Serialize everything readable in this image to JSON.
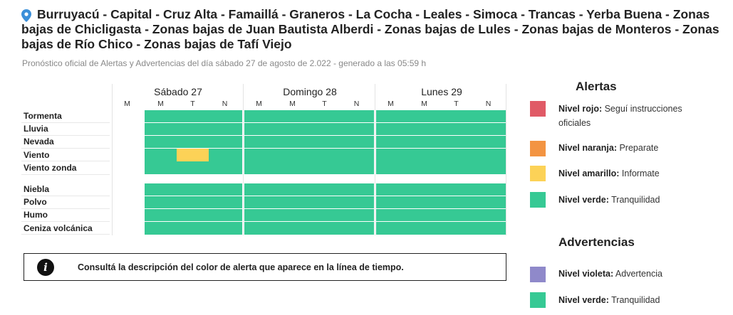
{
  "header": {
    "title": "Burruyacú - Capital - Cruz Alta - Famaillá - Graneros - La Cocha - Leales - Simoca - Trancas - Yerba Buena - Zonas bajas de Chicligasta - Zonas bajas de Juan Bautista Alberdi - Zonas bajas de Lules - Zonas bajas de Monteros - Zonas bajas de Río Chico - Zonas bajas de Tafí Viejo",
    "subtitle": "Pronóstico oficial de Alertas y Advertencias del día sábado 27 de agosto de 2.022 - generado a las 05:59 h",
    "pin_icon": "location-pin-icon"
  },
  "timeline": {
    "days": [
      {
        "label": "Sábado 27",
        "periods": [
          "M",
          "M",
          "T",
          "N"
        ]
      },
      {
        "label": "Domingo 28",
        "periods": [
          "M",
          "M",
          "T",
          "N"
        ]
      },
      {
        "label": "Lunes 29",
        "periods": [
          "M",
          "M",
          "T",
          "N"
        ]
      }
    ],
    "groups": [
      {
        "rows": [
          {
            "label": "Tormenta",
            "levels": [
              "",
              "green",
              "green",
              "green",
              "green",
              "green",
              "green",
              "green",
              "green",
              "green",
              "green",
              "green"
            ]
          },
          {
            "label": "Lluvia",
            "levels": [
              "",
              "green",
              "green",
              "green",
              "green",
              "green",
              "green",
              "green",
              "green",
              "green",
              "green",
              "green"
            ]
          },
          {
            "label": "Nevada",
            "levels": [
              "",
              "green",
              "green",
              "green",
              "green",
              "green",
              "green",
              "green",
              "green",
              "green",
              "green",
              "green"
            ]
          },
          {
            "label": "Viento",
            "levels": [
              "",
              "green",
              "yellow",
              "green",
              "green",
              "green",
              "green",
              "green",
              "green",
              "green",
              "green",
              "green"
            ]
          },
          {
            "label": "Viento zonda",
            "levels": [
              "",
              "green",
              "green",
              "green",
              "green",
              "green",
              "green",
              "green",
              "green",
              "green",
              "green",
              "green"
            ]
          }
        ]
      },
      {
        "rows": [
          {
            "label": "Niebla",
            "levels": [
              "",
              "green",
              "green",
              "green",
              "green",
              "green",
              "green",
              "green",
              "green",
              "green",
              "green",
              "green"
            ]
          },
          {
            "label": "Polvo",
            "levels": [
              "",
              "green",
              "green",
              "green",
              "green",
              "green",
              "green",
              "green",
              "green",
              "green",
              "green",
              "green"
            ]
          },
          {
            "label": "Humo",
            "levels": [
              "",
              "green",
              "green",
              "green",
              "green",
              "green",
              "green",
              "green",
              "green",
              "green",
              "green",
              "green"
            ]
          },
          {
            "label": "Ceniza volcánica",
            "levels": [
              "",
              "green",
              "green",
              "green",
              "green",
              "green",
              "green",
              "green",
              "green",
              "green",
              "green",
              "green"
            ]
          }
        ]
      }
    ]
  },
  "info": {
    "text": "Consultá la descripción del color de alerta que aparece en la línea de tiempo.",
    "icon": "info-icon"
  },
  "legend": {
    "alertas_title": "Alertas",
    "alertas": [
      {
        "name": "Nivel rojo:",
        "desc": " Seguí instrucciones oficiales",
        "color": "#e05a66"
      },
      {
        "name": "Nivel naranja:",
        "desc": " Preparate",
        "color": "#f39442"
      },
      {
        "name": "Nivel amarillo:",
        "desc": " Informate",
        "color": "#fcd257"
      },
      {
        "name": "Nivel verde:",
        "desc": " Tranquilidad",
        "color": "#36c994"
      }
    ],
    "advertencias_title": "Advertencias",
    "advertencias": [
      {
        "name": "Nivel violeta:",
        "desc": " Advertencia",
        "color": "#8f89ca"
      },
      {
        "name": "Nivel verde:",
        "desc": " Tranquilidad",
        "color": "#36c994"
      }
    ]
  },
  "colors": {
    "green": "#36c994",
    "yellow": "#fcd257",
    "empty": "#ffffff"
  }
}
